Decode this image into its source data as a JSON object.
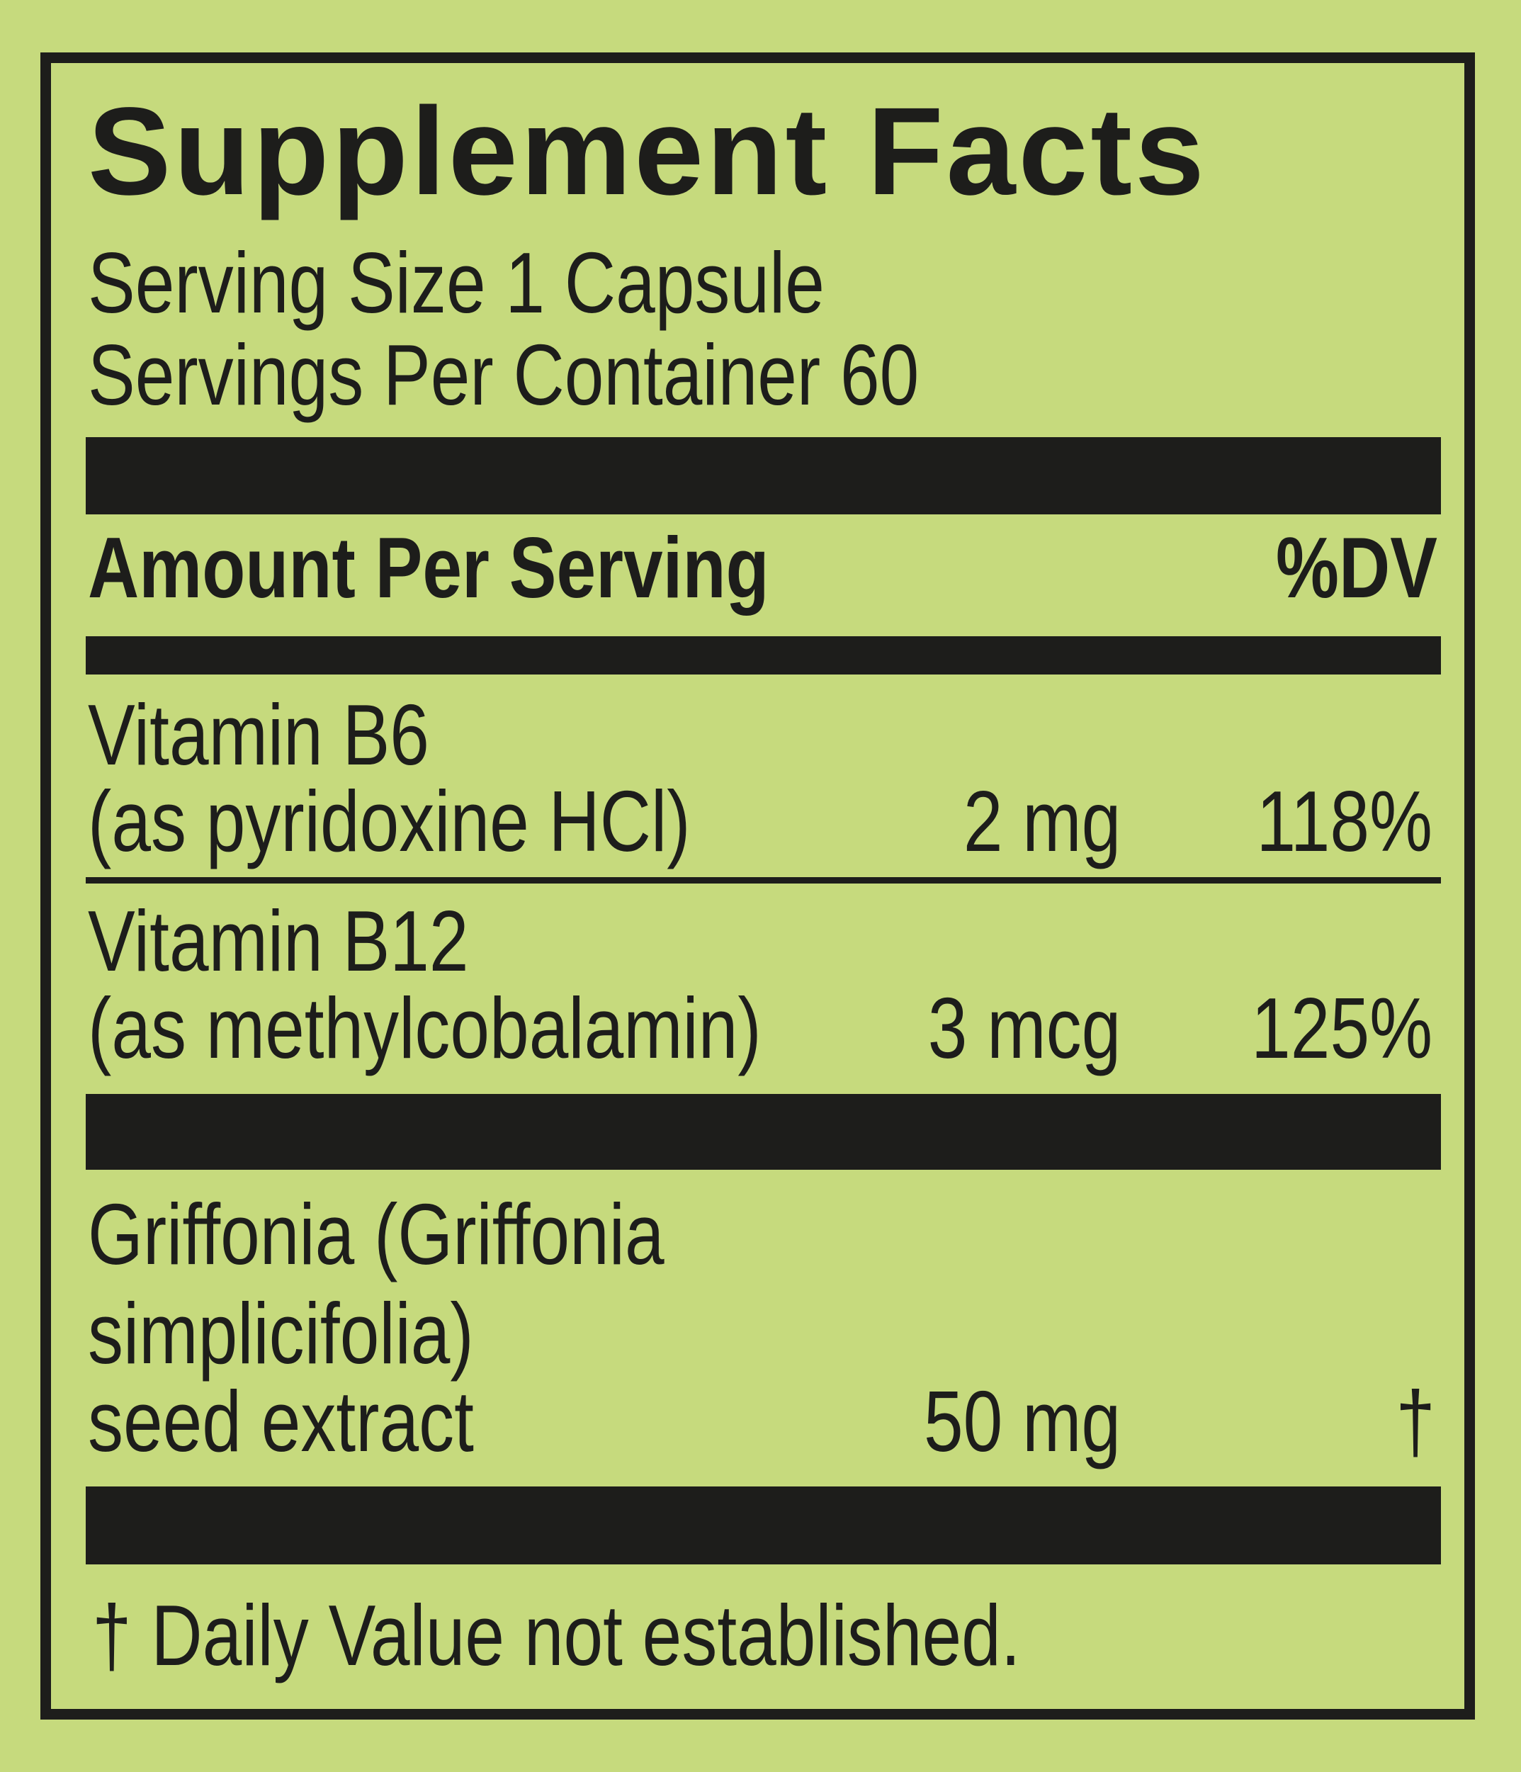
{
  "title": "Supplement Facts",
  "serving_size": "Serving Size 1 Capsule",
  "servings_per_container": "Servings Per Container 60",
  "header": {
    "amount_label": "Amount Per Serving",
    "dv_label": "%DV"
  },
  "nutrients": [
    {
      "name_line1": "Vitamin B6",
      "name_line2": "(as pyridoxine HCl)",
      "amount": "2 mg",
      "dv": "118%"
    },
    {
      "name_line1": "Vitamin B12",
      "name_line2": "(as methylcobalamin)",
      "amount": "3 mcg",
      "dv": "125%"
    }
  ],
  "other_ingredients": [
    {
      "name_line1": "Griffonia (Griffonia",
      "name_line2": "simplicifolia)",
      "name_line3": "seed extract",
      "amount": "50 mg",
      "dv": "†"
    }
  ],
  "footnote": "† Daily Value not established.",
  "colors": {
    "background": "#c6da7d",
    "ink": "#1d1d1b"
  }
}
